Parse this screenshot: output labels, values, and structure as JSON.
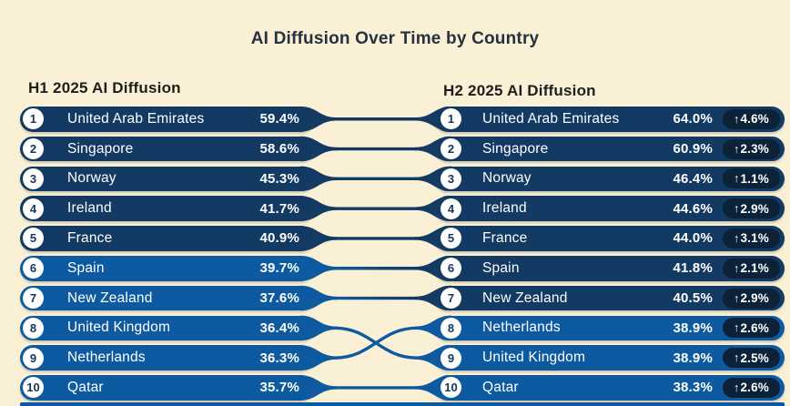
{
  "title": "AI Diffusion Over Time by Country",
  "colors": {
    "background": "#FAF0D5",
    "pill_dark": "#123A63",
    "pill_light": "#0E5AA0",
    "badge_bg": "#0B2238",
    "rank_text": "#14365C",
    "title_text": "#27313F",
    "header_text": "#1E1E1E",
    "row_text": "#FFFFFF"
  },
  "icons": {
    "up_arrow": "↑"
  },
  "chart_data": {
    "type": "slopegraph_ranking",
    "title": "AI Diffusion Over Time by Country",
    "value_unit": "%",
    "shade_note": "rows with value >= 40% are dark navy, below 40% are lighter blue",
    "periods": [
      {
        "label": "H1 2025 AI Diffusion",
        "ranking": [
          {
            "rank": 1,
            "country": "United Arab Emirates",
            "value": 59.4,
            "shade": "dark"
          },
          {
            "rank": 2,
            "country": "Singapore",
            "value": 58.6,
            "shade": "dark"
          },
          {
            "rank": 3,
            "country": "Norway",
            "value": 45.3,
            "shade": "dark"
          },
          {
            "rank": 4,
            "country": "Ireland",
            "value": 41.7,
            "shade": "dark"
          },
          {
            "rank": 5,
            "country": "France",
            "value": 40.9,
            "shade": "dark"
          },
          {
            "rank": 6,
            "country": "Spain",
            "value": 39.7,
            "shade": "light"
          },
          {
            "rank": 7,
            "country": "New Zealand",
            "value": 37.6,
            "shade": "light"
          },
          {
            "rank": 8,
            "country": "United Kingdom",
            "value": 36.4,
            "shade": "light"
          },
          {
            "rank": 9,
            "country": "Netherlands",
            "value": 36.3,
            "shade": "light"
          },
          {
            "rank": 10,
            "country": "Qatar",
            "value": 35.7,
            "shade": "light"
          }
        ]
      },
      {
        "label": "H2 2025 AI Diffusion",
        "ranking": [
          {
            "rank": 1,
            "country": "United Arab Emirates",
            "value": 64.0,
            "change": 4.6,
            "change_dir": "up",
            "shade": "dark"
          },
          {
            "rank": 2,
            "country": "Singapore",
            "value": 60.9,
            "change": 2.3,
            "change_dir": "up",
            "shade": "dark"
          },
          {
            "rank": 3,
            "country": "Norway",
            "value": 46.4,
            "change": 1.1,
            "change_dir": "up",
            "shade": "dark"
          },
          {
            "rank": 4,
            "country": "Ireland",
            "value": 44.6,
            "change": 2.9,
            "change_dir": "up",
            "shade": "dark"
          },
          {
            "rank": 5,
            "country": "France",
            "value": 44.0,
            "change": 3.1,
            "change_dir": "up",
            "shade": "dark"
          },
          {
            "rank": 6,
            "country": "Spain",
            "value": 41.8,
            "change": 2.1,
            "change_dir": "up",
            "shade": "dark"
          },
          {
            "rank": 7,
            "country": "New Zealand",
            "value": 40.5,
            "change": 2.9,
            "change_dir": "up",
            "shade": "dark"
          },
          {
            "rank": 8,
            "country": "Netherlands",
            "value": 38.9,
            "change": 2.6,
            "change_dir": "up",
            "shade": "light"
          },
          {
            "rank": 9,
            "country": "United Kingdom",
            "value": 38.9,
            "change": 2.5,
            "change_dir": "up",
            "shade": "light"
          },
          {
            "rank": 10,
            "country": "Qatar",
            "value": 38.3,
            "change": 2.6,
            "change_dir": "up",
            "shade": "light"
          }
        ]
      }
    ],
    "links": "rows linked between periods by country; United Kingdom and Netherlands swap ranks 8/9",
    "cropped_next_row_visible": true
  }
}
